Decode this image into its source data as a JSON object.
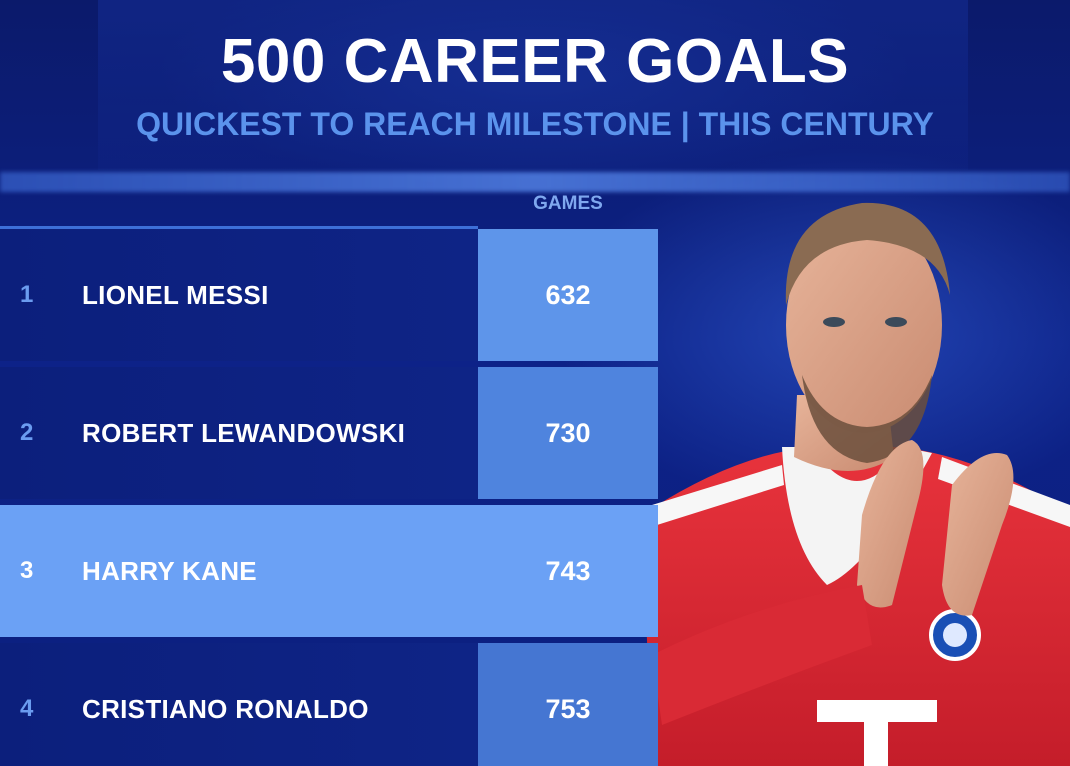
{
  "title": "500 CAREER GOALS",
  "subtitle": "QUICKEST TO REACH MILESTONE | THIS CENTURY",
  "column_header": "GAMES",
  "rows": [
    {
      "rank": "1",
      "name": "LIONEL MESSI",
      "games": "632",
      "cell_color": "#5e95ea"
    },
    {
      "rank": "2",
      "name": "ROBERT LEWANDOWSKI",
      "games": "730",
      "cell_color": "#4f84de"
    },
    {
      "rank": "3",
      "name": "HARRY KANE",
      "games": "743",
      "cell_color": "#6ba1f5",
      "highlighted": true
    },
    {
      "rank": "4",
      "name": "CRISTIANO RONALDO",
      "games": "753",
      "cell_color": "#4576d2"
    }
  ],
  "colors": {
    "background": "#0c1f7e",
    "accent": "#6ba1f5",
    "subtitle": "#5b93ec"
  },
  "image": {
    "subject": "football-player-photo",
    "icon": "player-portrait-icon"
  }
}
